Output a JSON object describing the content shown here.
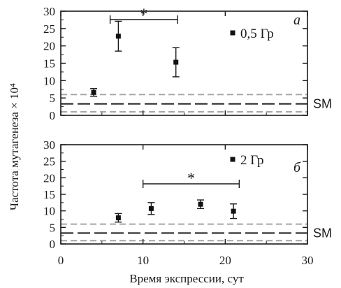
{
  "chart_data": {
    "type": "scatter",
    "xlabel": "Время экспрессии, сут",
    "ylabel": "Частота мутагенеза × 10⁴",
    "xlim": [
      0,
      30
    ],
    "xticks": [
      "0",
      "10",
      "20",
      "30"
    ],
    "reference": {
      "label": "SM",
      "mean": 3.3,
      "band": [
        1.0,
        6.0
      ]
    },
    "panels": [
      {
        "letter": "а",
        "ylim": [
          0,
          30
        ],
        "yticks": [
          "0",
          "5",
          "10",
          "15",
          "20",
          "25",
          "30"
        ],
        "series": [
          {
            "name": "0,5 Гр",
            "points": [
              {
                "x": 4,
                "y": 6.6,
                "err": 1.1
              },
              {
                "x": 7,
                "y": 22.8,
                "err": 4.3
              },
              {
                "x": 14,
                "y": 15.3,
                "err": 4.2
              }
            ]
          }
        ],
        "significance": {
          "label": "*",
          "from": 6,
          "to": 14.2
        }
      },
      {
        "letter": "б",
        "ylim": [
          0,
          30
        ],
        "yticks": [
          "0",
          "5",
          "10",
          "15",
          "20",
          "25",
          "30"
        ],
        "series": [
          {
            "name": "2 Гр",
            "points": [
              {
                "x": 7,
                "y": 7.9,
                "err": 1.3
              },
              {
                "x": 11,
                "y": 10.7,
                "err": 1.8
              },
              {
                "x": 17,
                "y": 12.0,
                "err": 1.3
              },
              {
                "x": 21,
                "y": 9.9,
                "err": 2.2
              }
            ]
          }
        ],
        "significance": {
          "label": "*",
          "from": 10,
          "to": 21.7
        }
      }
    ]
  }
}
